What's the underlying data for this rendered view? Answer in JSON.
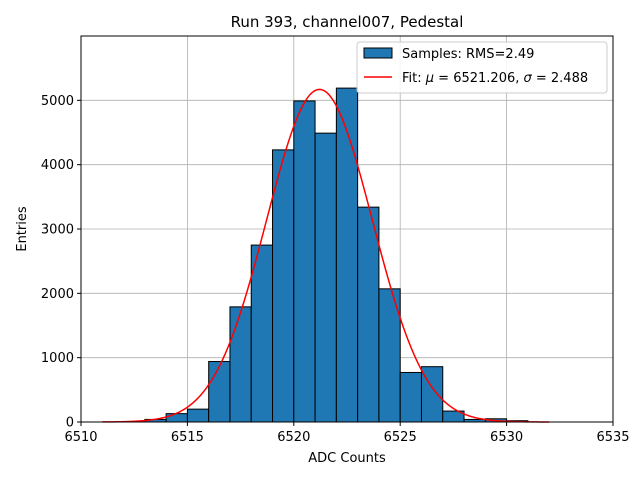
{
  "chart_data": {
    "type": "bar",
    "title": "Run 393, channel007, Pedestal",
    "xlabel": "ADC Counts",
    "ylabel": "Entries",
    "xlim": [
      6510,
      6535
    ],
    "ylim": [
      0,
      6000
    ],
    "xticks": [
      6510,
      6515,
      6520,
      6525,
      6530,
      6535
    ],
    "yticks": [
      0,
      1000,
      2000,
      3000,
      4000,
      5000
    ],
    "grid": true,
    "legend_position": "top-right",
    "colors": {
      "bar_fill": "#1f77b4",
      "bar_edge": "#000000",
      "fit_line": "#ff0000",
      "grid": "#b0b0b0"
    },
    "histogram": {
      "name": "Samples: RMS=2.49",
      "bin_edges": [
        6513,
        6514,
        6515,
        6516,
        6517,
        6518,
        6519,
        6520,
        6521,
        6522,
        6523,
        6524,
        6525,
        6526,
        6527,
        6528,
        6529,
        6530,
        6531
      ],
      "values": [
        40,
        130,
        200,
        940,
        1790,
        2750,
        4230,
        4990,
        4490,
        5190,
        3340,
        2070,
        770,
        860,
        170,
        40,
        50,
        20
      ]
    },
    "fit": {
      "name_prefix": "Fit: ",
      "name_mu": "μ",
      "name_eq1": " = 6521.206, ",
      "name_sigma": "σ",
      "name_eq2": " = 2.488",
      "mu": 6521.206,
      "sigma": 2.488,
      "amplitude": 5170,
      "x_range": [
        6511,
        6532
      ]
    }
  }
}
